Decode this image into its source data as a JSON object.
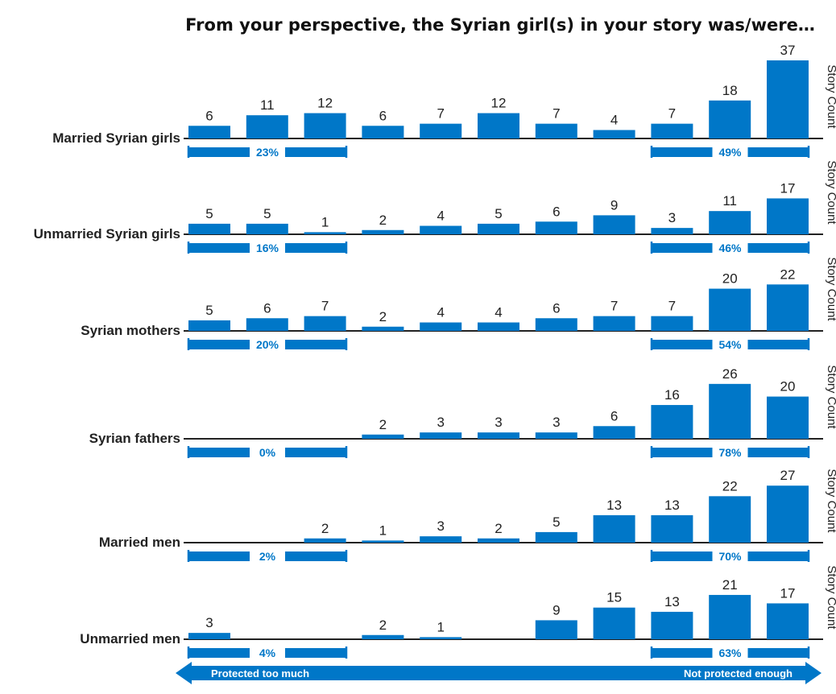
{
  "chart_data": {
    "type": "bar",
    "title": "From your perspective, the Syrian girl(s) in your story was/were…",
    "ylabel": "Story Count",
    "ylim": [
      0,
      37
    ],
    "bar_color": "#0077c8",
    "scale_left_label": "Protected too much",
    "scale_right_label": "Not protected enough",
    "series": [
      {
        "name": "Married Syrian girls",
        "values": [
          6,
          11,
          12,
          6,
          7,
          12,
          7,
          4,
          7,
          18,
          37
        ],
        "left_pct": "23%",
        "right_pct": "49%"
      },
      {
        "name": "Unmarried Syrian girls",
        "values": [
          5,
          5,
          1,
          2,
          4,
          5,
          6,
          9,
          3,
          11,
          17
        ],
        "left_pct": "16%",
        "right_pct": "46%"
      },
      {
        "name": "Syrian mothers",
        "values": [
          5,
          6,
          7,
          2,
          4,
          4,
          6,
          7,
          7,
          20,
          22
        ],
        "left_pct": "20%",
        "right_pct": "54%"
      },
      {
        "name": "Syrian fathers",
        "values": [
          0,
          0,
          0,
          2,
          3,
          3,
          3,
          6,
          16,
          26,
          20
        ],
        "left_pct": "0%",
        "right_pct": "78%"
      },
      {
        "name": "Married men",
        "values": [
          0,
          0,
          2,
          1,
          3,
          2,
          5,
          13,
          13,
          22,
          27
        ],
        "left_pct": "2%",
        "right_pct": "70%"
      },
      {
        "name": "Unmarried men",
        "values": [
          3,
          0,
          0,
          2,
          1,
          0,
          9,
          15,
          13,
          21,
          17
        ],
        "left_pct": "4%",
        "right_pct": "63%"
      }
    ]
  }
}
